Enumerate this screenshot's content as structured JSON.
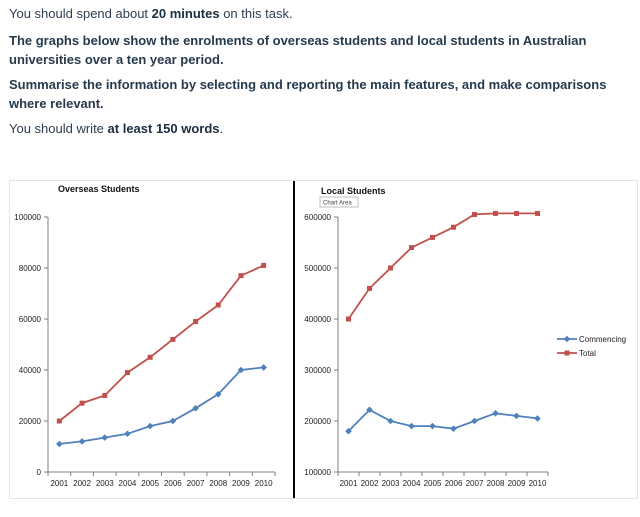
{
  "task": {
    "line1_pre": "You should spend about ",
    "line1_bold": "20 minutes",
    "line1_post": " on this task.",
    "prompt": "The graphs below show the enrolments of overseas students and local students in Australian universities over a ten year period.",
    "instruction": "Summarise the information by selecting and reporting the main features, and make comparisons where relevant.",
    "line4_pre": "You should write ",
    "line4_bold": "at least 150 words",
    "line4_post": "."
  },
  "tooltip": "Chart Area",
  "colors": {
    "commencing": "#4f81bd",
    "total": "#c0504d",
    "axis": "#7f7f7f",
    "divider": "#000000"
  },
  "chart_data": [
    {
      "type": "line",
      "title": "Overseas Students",
      "categories": [
        "2001",
        "2002",
        "2003",
        "2004",
        "2005",
        "2006",
        "2007",
        "2008",
        "2009",
        "2010"
      ],
      "ylim": [
        0,
        100000
      ],
      "yticks": [
        0,
        20000,
        40000,
        60000,
        80000,
        100000
      ],
      "ytick_labels": [
        "0",
        "20000",
        "40000",
        "60000",
        "80000",
        "100000"
      ],
      "series": [
        {
          "name": "Commencing",
          "values": [
            11000,
            12000,
            13500,
            15000,
            18000,
            20000,
            25000,
            30500,
            40000,
            41000
          ]
        },
        {
          "name": "Total",
          "values": [
            20000,
            27000,
            30000,
            39000,
            45000,
            52000,
            59000,
            65500,
            77000,
            81000
          ]
        }
      ]
    },
    {
      "type": "line",
      "title": "Local Students",
      "categories": [
        "2001",
        "2002",
        "2003",
        "2004",
        "2005",
        "2006",
        "2007",
        "2008",
        "2009",
        "2010"
      ],
      "ylim": [
        100000,
        600000
      ],
      "yticks": [
        100000,
        200000,
        300000,
        400000,
        500000,
        600000
      ],
      "ytick_labels": [
        "100000",
        "200000",
        "300000",
        "400000",
        "500000",
        "600000"
      ],
      "legend": [
        "Commencing",
        "Total"
      ],
      "legend_position": "right",
      "series": [
        {
          "name": "Commencing",
          "values": [
            180000,
            222000,
            200000,
            190000,
            190000,
            185000,
            200000,
            215000,
            210000,
            205000
          ]
        },
        {
          "name": "Total",
          "values": [
            400000,
            460000,
            500000,
            540000,
            560000,
            580000,
            605000,
            607000,
            607000,
            607000
          ]
        }
      ]
    }
  ]
}
